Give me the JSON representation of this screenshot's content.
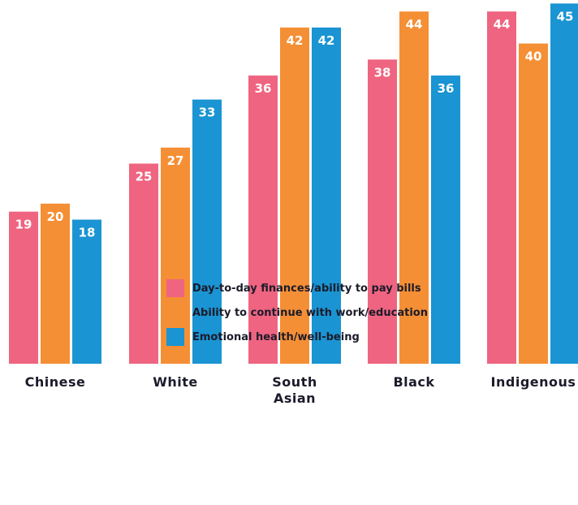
{
  "chart_data": {
    "type": "bar",
    "categories": [
      [
        "Chinese"
      ],
      [
        "White"
      ],
      [
        "South",
        "Asian"
      ],
      [
        "Black"
      ],
      [
        "Indigenous"
      ]
    ],
    "series": [
      {
        "name": "Day-to-day finances/ability to pay bills",
        "color": "#ef6480",
        "values": [
          19,
          25,
          36,
          38,
          44
        ]
      },
      {
        "name": "Ability to continue with work/education",
        "color": "#f58f35",
        "values": [
          20,
          27,
          42,
          44,
          40
        ]
      },
      {
        "name": "Emotional health/well-being",
        "color": "#1a94d2",
        "values": [
          18,
          33,
          42,
          36,
          45
        ]
      }
    ],
    "ylim": [
      0,
      45
    ],
    "grid": false,
    "legend_position": "bottom-center"
  }
}
